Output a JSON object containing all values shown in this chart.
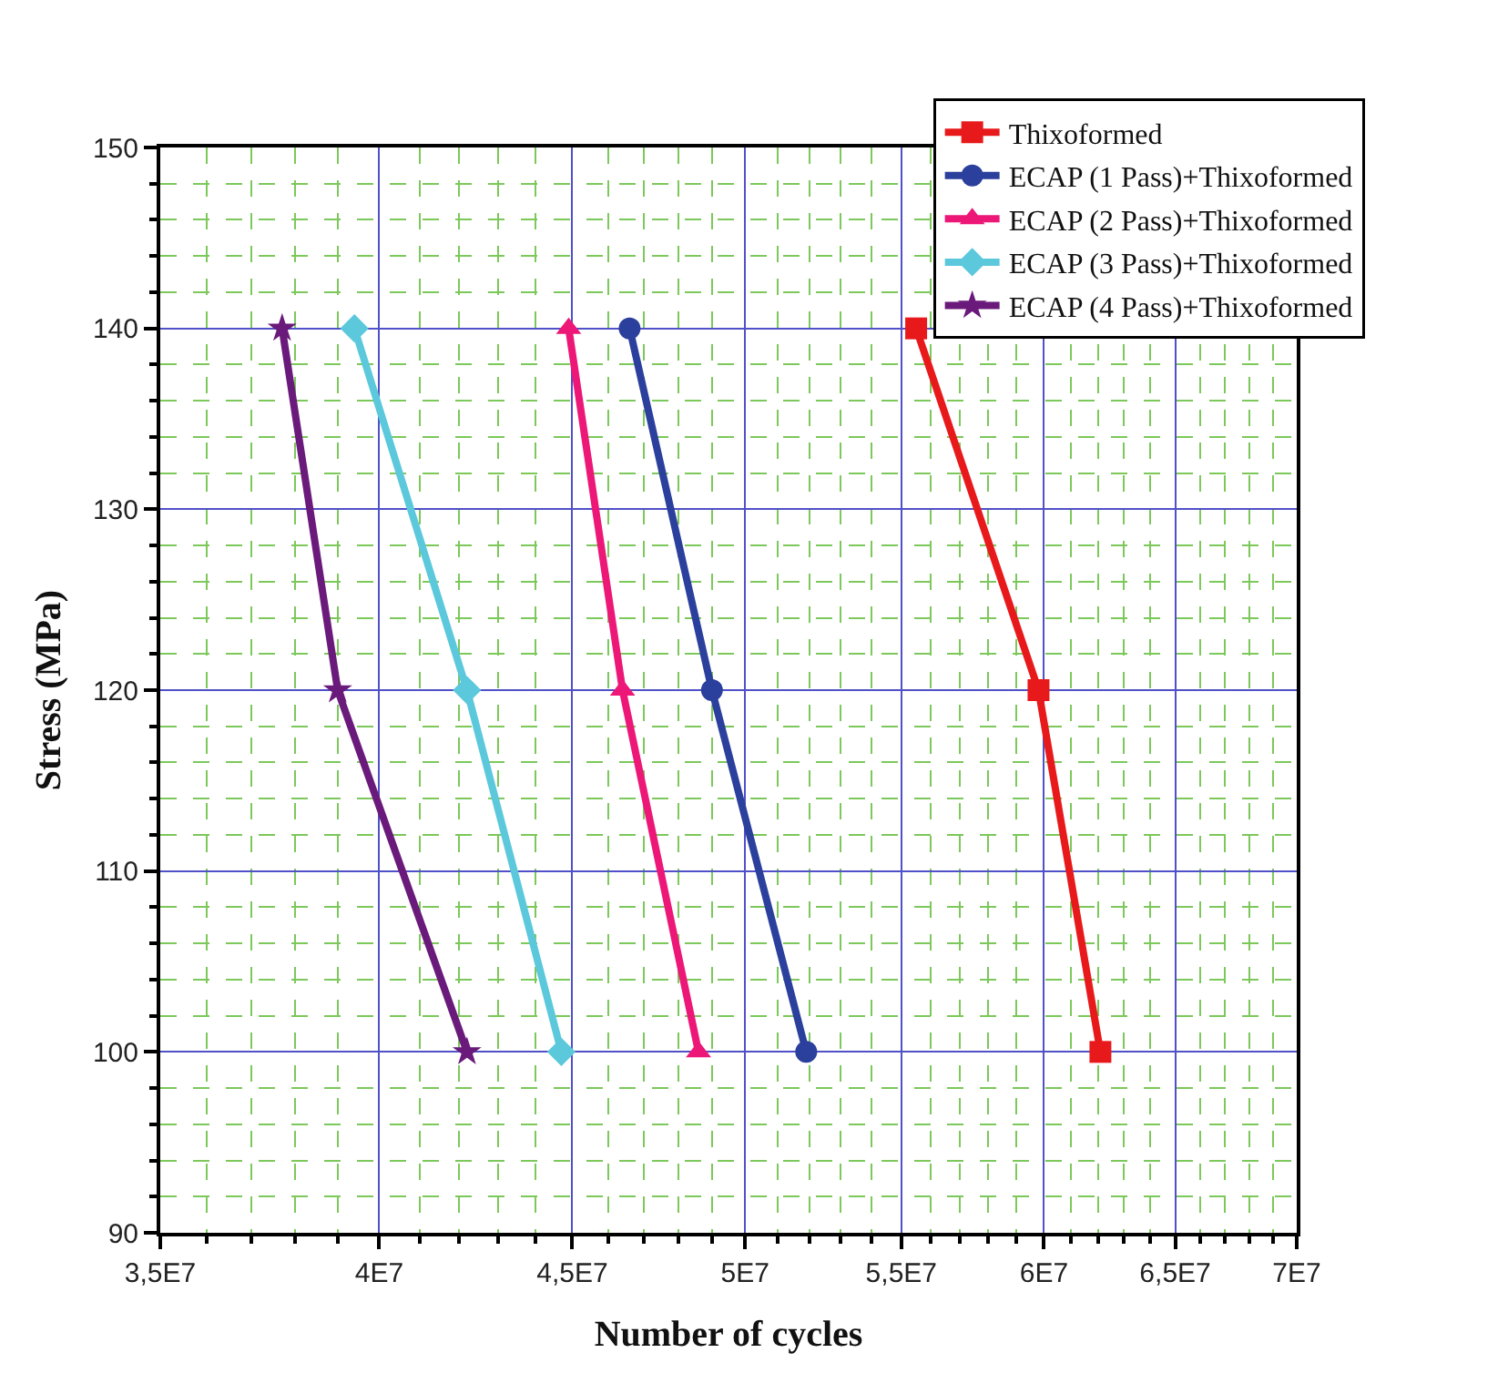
{
  "chart_data": {
    "type": "line",
    "xlabel": "Number of cycles",
    "ylabel": "Stress (MPa)",
    "log": "x",
    "xlim": [
      35000000,
      70000000
    ],
    "xticks": [
      {
        "value": 35000000,
        "label": "3,5E7"
      },
      {
        "value": 36000000,
        "label": null
      },
      {
        "value": 37000000,
        "label": null
      },
      {
        "value": 38000000,
        "label": null
      },
      {
        "value": 39000000,
        "label": null
      },
      {
        "value": 40000000,
        "label": "4E7"
      },
      {
        "value": 41000000,
        "label": null
      },
      {
        "value": 42000000,
        "label": null
      },
      {
        "value": 43000000,
        "label": null
      },
      {
        "value": 44000000,
        "label": null
      },
      {
        "value": 45000000,
        "label": "4,5E7"
      },
      {
        "value": 46000000,
        "label": null
      },
      {
        "value": 47000000,
        "label": null
      },
      {
        "value": 48000000,
        "label": null
      },
      {
        "value": 49000000,
        "label": null
      },
      {
        "value": 50000000,
        "label": "5E7"
      },
      {
        "value": 51000000,
        "label": null
      },
      {
        "value": 52000000,
        "label": null
      },
      {
        "value": 53000000,
        "label": null
      },
      {
        "value": 54000000,
        "label": null
      },
      {
        "value": 55000000,
        "label": "5,5E7"
      },
      {
        "value": 56000000,
        "label": null
      },
      {
        "value": 57000000,
        "label": null
      },
      {
        "value": 58000000,
        "label": null
      },
      {
        "value": 59000000,
        "label": null
      },
      {
        "value": 60000000,
        "label": "6E7"
      },
      {
        "value": 61000000,
        "label": null
      },
      {
        "value": 62000000,
        "label": null
      },
      {
        "value": 63000000,
        "label": null
      },
      {
        "value": 64000000,
        "label": null
      },
      {
        "value": 65000000,
        "label": "6,5E7"
      },
      {
        "value": 66000000,
        "label": null
      },
      {
        "value": 67000000,
        "label": null
      },
      {
        "value": 68000000,
        "label": null
      },
      {
        "value": 69000000,
        "label": null
      },
      {
        "value": 70000000,
        "label": "7E7"
      }
    ],
    "ylim": [
      90,
      150
    ],
    "yticks": [
      90,
      {
        "value": 92,
        "label": null
      },
      {
        "value": 94,
        "label": null
      },
      {
        "value": 96,
        "label": null
      },
      {
        "value": 98,
        "label": null
      },
      100,
      {
        "value": 102,
        "label": null
      },
      {
        "value": 104,
        "label": null
      },
      {
        "value": 106,
        "label": null
      },
      {
        "value": 108,
        "label": null
      },
      110,
      {
        "value": 112,
        "label": null
      },
      {
        "value": 114,
        "label": null
      },
      {
        "value": 116,
        "label": null
      },
      {
        "value": 118,
        "label": null
      },
      120,
      {
        "value": 122,
        "label": null
      },
      {
        "value": 124,
        "label": null
      },
      {
        "value": 126,
        "label": null
      },
      {
        "value": 128,
        "label": null
      },
      130,
      {
        "value": 132,
        "label": null
      },
      {
        "value": 134,
        "label": null
      },
      {
        "value": 136,
        "label": null
      },
      {
        "value": 138,
        "label": null
      },
      140,
      {
        "value": 142,
        "label": null
      },
      {
        "value": 144,
        "label": null
      },
      {
        "value": 146,
        "label": null
      },
      {
        "value": 148,
        "label": null
      },
      150
    ],
    "grid": true,
    "legend": "top right",
    "line_style": "solid",
    "series": [
      {
        "name": "Thixoformed",
        "color": "#e8191b",
        "marker": "square",
        "x": [
          55500000,
          59800000,
          62100000
        ],
        "values": [
          140,
          120,
          100
        ]
      },
      {
        "name": "ECAP (1 Pass)+Thixoformed",
        "color": "#2b3f9c",
        "marker": "circle",
        "x": [
          46600000,
          49000000,
          51900000
        ],
        "values": [
          140,
          120,
          100
        ]
      },
      {
        "name": "ECAP (2 Pass)+Thixoformed",
        "color": "#ec1777",
        "marker": "triangle",
        "x": [
          44900000,
          46400000,
          48600000
        ],
        "values": [
          140,
          120,
          100
        ]
      },
      {
        "name": "ECAP (3 Pass)+Thixoformed",
        "color": "#5bc8dc",
        "marker": "diamond",
        "x": [
          39400000,
          42200000,
          44700000
        ],
        "values": [
          140,
          120,
          100
        ]
      },
      {
        "name": "ECAP (4 Pass)+Thixoformed",
        "color": "#6a1a7a",
        "marker": "star",
        "x": [
          37700000,
          39000000,
          42200000
        ],
        "values": [
          140,
          120,
          100
        ]
      }
    ]
  }
}
